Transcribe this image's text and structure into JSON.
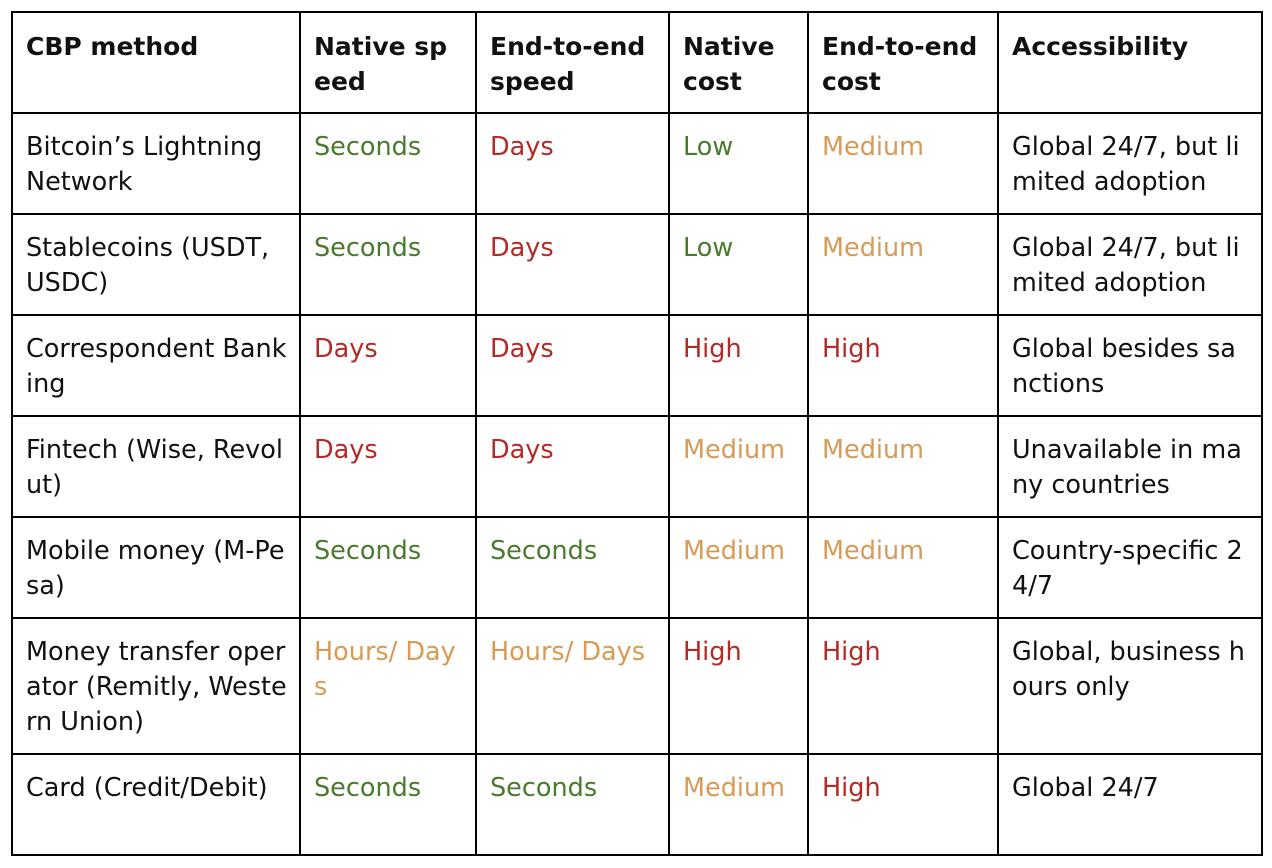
{
  "table": {
    "headers": [
      "CBP method",
      "Native speed",
      "End-to-end speed",
      "Native cost",
      "End-to-end cost",
      "Accessibility"
    ],
    "rows": [
      {
        "method": "Bitcoin’s Lightning Network",
        "native_speed": {
          "text": "Seconds",
          "rating": "green"
        },
        "e2e_speed": {
          "text": "Days",
          "rating": "red"
        },
        "native_cost": {
          "text": "Low",
          "rating": "green"
        },
        "e2e_cost": {
          "text": "Medium",
          "rating": "orange"
        },
        "accessibility": "Global 24/7, but limited adoption"
      },
      {
        "method": "Stablecoins (USDT, USDC)",
        "native_speed": {
          "text": "Seconds",
          "rating": "green"
        },
        "e2e_speed": {
          "text": "Days",
          "rating": "red"
        },
        "native_cost": {
          "text": "Low",
          "rating": "green"
        },
        "e2e_cost": {
          "text": "Medium",
          "rating": "orange"
        },
        "accessibility": "Global 24/7, but limited adoption"
      },
      {
        "method": "Correspondent Banking",
        "native_speed": {
          "text": "Days",
          "rating": "red"
        },
        "e2e_speed": {
          "text": "Days",
          "rating": "red"
        },
        "native_cost": {
          "text": "High",
          "rating": "red"
        },
        "e2e_cost": {
          "text": "High",
          "rating": "red"
        },
        "accessibility": "Global besides sanctions"
      },
      {
        "method": "Fintech (Wise, Revolut)",
        "native_speed": {
          "text": "Days",
          "rating": "red"
        },
        "e2e_speed": {
          "text": "Days",
          "rating": "red"
        },
        "native_cost": {
          "text": "Medium",
          "rating": "orange"
        },
        "e2e_cost": {
          "text": "Medium",
          "rating": "orange"
        },
        "accessibility": "Unavailable in many countries"
      },
      {
        "method": "Mobile money (M-Pesa)",
        "native_speed": {
          "text": "Seconds",
          "rating": "green"
        },
        "e2e_speed": {
          "text": "Seconds",
          "rating": "green"
        },
        "native_cost": {
          "text": "Medium",
          "rating": "orange"
        },
        "e2e_cost": {
          "text": "Medium",
          "rating": "orange"
        },
        "accessibility": "Country-specific 24/7"
      },
      {
        "method": "Money transfer operator (Remitly, Western Union)",
        "native_speed": {
          "text": "Hours/ Days",
          "rating": "orange"
        },
        "e2e_speed": {
          "text": "Hours/ Days",
          "rating": "orange"
        },
        "native_cost": {
          "text": "High",
          "rating": "red"
        },
        "e2e_cost": {
          "text": "High",
          "rating": "red"
        },
        "accessibility": "Global, business hours only"
      },
      {
        "method": "Card (Credit/Debit)",
        "native_speed": {
          "text": "Seconds",
          "rating": "green"
        },
        "e2e_speed": {
          "text": "Seconds",
          "rating": "green"
        },
        "native_cost": {
          "text": "Medium",
          "rating": "orange"
        },
        "e2e_cost": {
          "text": "High",
          "rating": "red"
        },
        "accessibility": "Global 24/7"
      }
    ]
  },
  "colors": {
    "green": "#4a7a2e",
    "red": "#b22b26",
    "orange": "#d89a55",
    "text": "#111111",
    "border": "#000000"
  }
}
